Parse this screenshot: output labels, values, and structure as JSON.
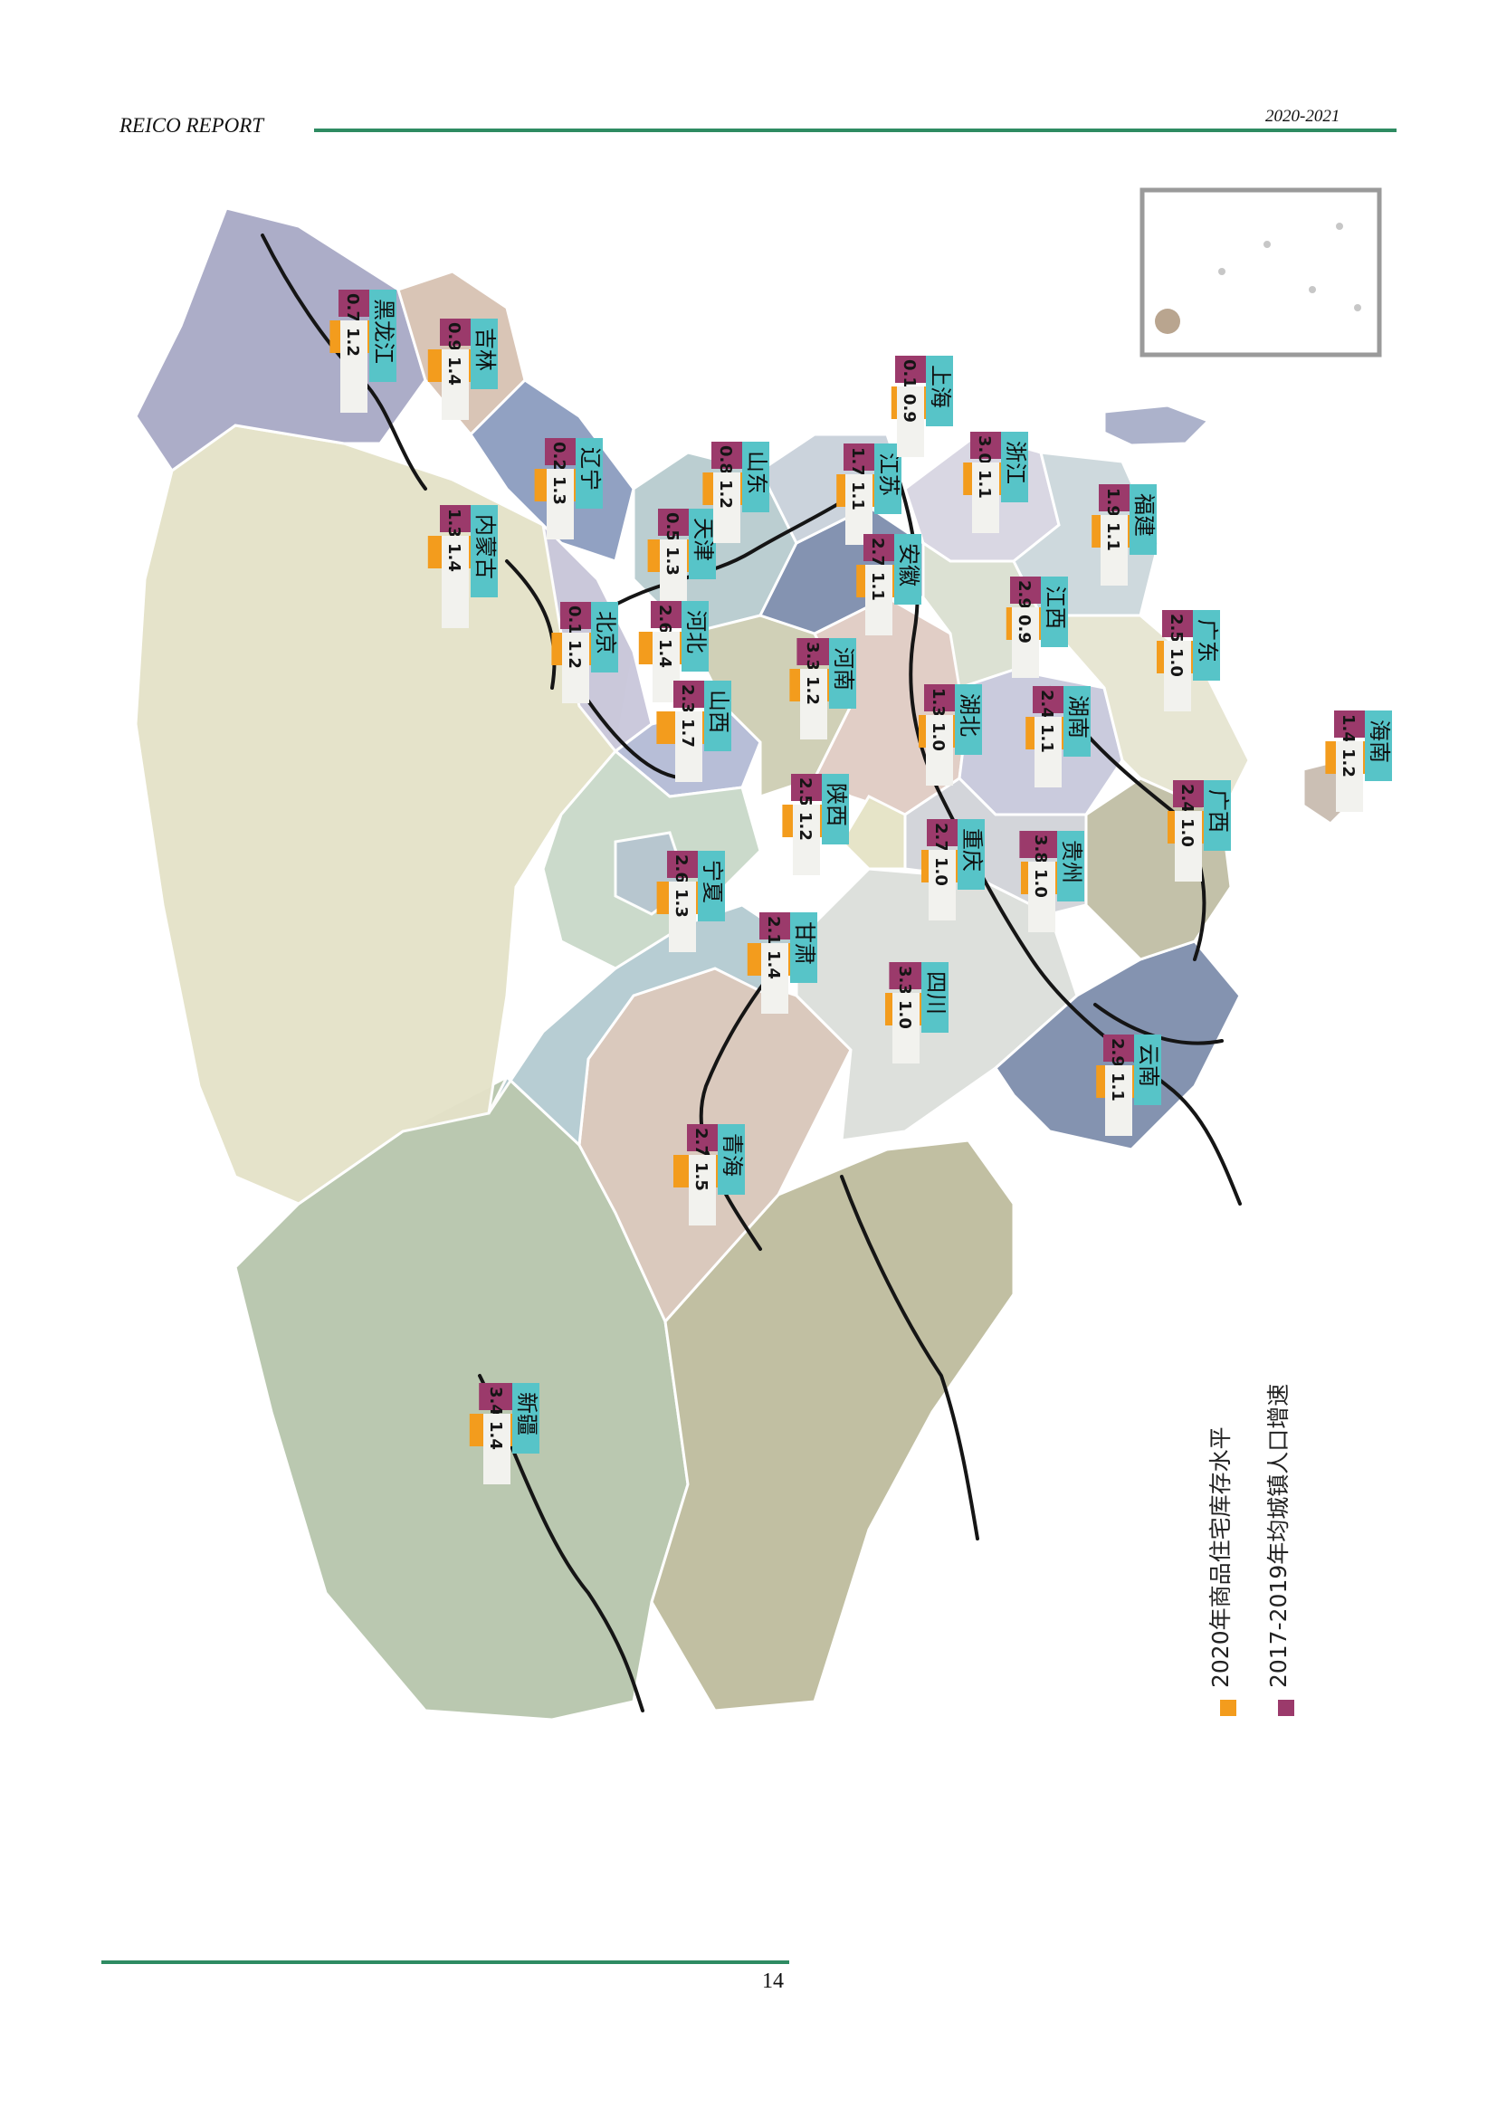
{
  "header": {
    "left": "REICO REPORT",
    "right": "2020-2021"
  },
  "page_number": "14",
  "legend": {
    "items": [
      {
        "label": "2020年商品住宅库存水平",
        "color": "#f39c1d"
      },
      {
        "label": "2017-2019年均城镇人口增速",
        "color": "#9b3a6b"
      }
    ]
  },
  "colors": {
    "inventory": "#f39c1d",
    "growth": "#9b3a6b",
    "name_box": "#57c4c8",
    "accent": "#2e8b62"
  },
  "provinces": [
    {
      "name": "黑龙江",
      "inventory": "1.2",
      "growth": "0.7%"
    },
    {
      "name": "吉林",
      "inventory": "1.4",
      "growth": "0.9%"
    },
    {
      "name": "辽宁",
      "inventory": "1.3",
      "growth": "0.2%"
    },
    {
      "name": "内蒙古",
      "inventory": "1.4",
      "growth": "1.3%"
    },
    {
      "name": "天津",
      "inventory": "1.3",
      "growth": "0.5%"
    },
    {
      "name": "北京",
      "inventory": "1.2",
      "growth": "0.1%"
    },
    {
      "name": "河北",
      "inventory": "1.4",
      "growth": "2.6%"
    },
    {
      "name": "山西",
      "inventory": "1.7",
      "growth": "2.3%"
    },
    {
      "name": "山东",
      "inventory": "1.2",
      "growth": "0.8%"
    },
    {
      "name": "江苏",
      "inventory": "1.1",
      "growth": "1.7%"
    },
    {
      "name": "上海",
      "inventory": "0.9",
      "growth": "0.1%"
    },
    {
      "name": "浙江",
      "inventory": "1.1",
      "growth": "3.0%"
    },
    {
      "name": "安徽",
      "inventory": "1.1",
      "growth": "2.7%"
    },
    {
      "name": "福建",
      "inventory": "1.1",
      "growth": "1.9%"
    },
    {
      "name": "江西",
      "inventory": "0.9",
      "growth": "2.9%"
    },
    {
      "name": "河南",
      "inventory": "1.2",
      "growth": "3.3%"
    },
    {
      "name": "湖北",
      "inventory": "1.0",
      "growth": "1.3%"
    },
    {
      "name": "湖南",
      "inventory": "1.1",
      "growth": "2.4%"
    },
    {
      "name": "广东",
      "inventory": "1.0",
      "growth": "2.5%"
    },
    {
      "name": "海南",
      "inventory": "1.2",
      "growth": "1.4%"
    },
    {
      "name": "陕西",
      "inventory": "1.2",
      "growth": "2.5%"
    },
    {
      "name": "重庆",
      "inventory": "1.0",
      "growth": "2.7%"
    },
    {
      "name": "贵州",
      "inventory": "1.0",
      "growth": "3.8%"
    },
    {
      "name": "广西",
      "inventory": "1.0",
      "growth": "2.4%"
    },
    {
      "name": "宁夏",
      "inventory": "1.3",
      "growth": "2.6%"
    },
    {
      "name": "甘肃",
      "inventory": "1.4",
      "growth": "2.1%"
    },
    {
      "name": "四川",
      "inventory": "1.0",
      "growth": "3.3%"
    },
    {
      "name": "云南",
      "inventory": "1.1",
      "growth": "2.9%"
    },
    {
      "name": "青海",
      "inventory": "1.5",
      "growth": "2.7%"
    },
    {
      "name": "新疆",
      "inventory": "1.4",
      "growth": "3.4%"
    }
  ]
}
